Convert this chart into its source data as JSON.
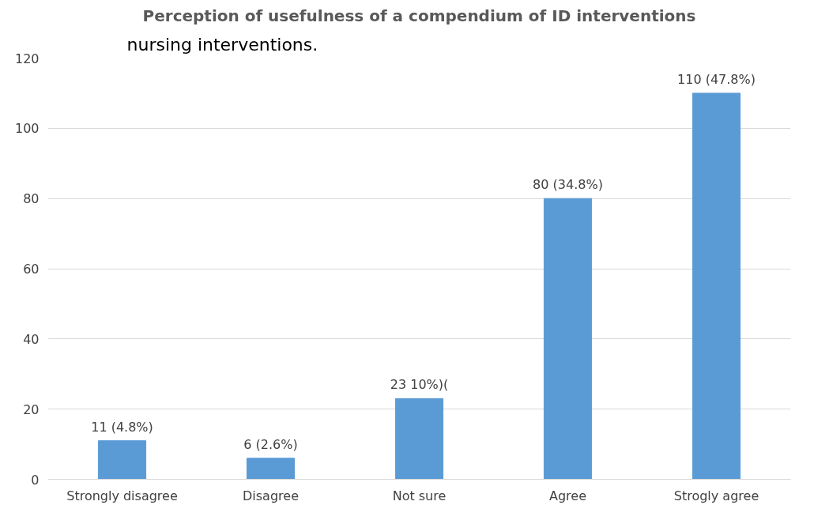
{
  "chart_data": {
    "type": "bar",
    "title": "Perception of usefulness of a compendium of ID interventions",
    "annotations": [
      "nursing interventions."
    ],
    "categories": [
      "Strongly disagree",
      "Disagree",
      "Not sure",
      "Agree",
      "Strogly agree"
    ],
    "values": [
      11,
      6,
      23,
      80,
      110
    ],
    "value_labels": [
      "11 (4.8%)",
      "6 (2.6%)",
      "23 10%)(",
      "80 (34.8%)",
      "110 (47.8%)"
    ],
    "color": "#5b9bd5",
    "ylim": [
      0,
      120
    ],
    "yticks": [
      0,
      20,
      40,
      60,
      80,
      100,
      120
    ],
    "grid": "y"
  }
}
